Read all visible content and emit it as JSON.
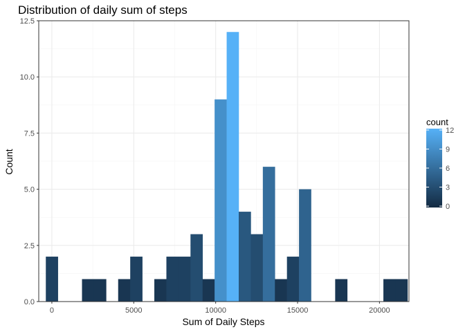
{
  "chart_data": {
    "type": "bar",
    "title": "Distribution of daily sum of steps",
    "xlabel": "Sum of Daily Steps",
    "ylabel": "Count",
    "xlim": [
      -800,
      21800
    ],
    "ylim": [
      0,
      12.5
    ],
    "x_ticks": [
      0,
      5000,
      10000,
      15000,
      20000
    ],
    "x_tick_labels": [
      "0",
      "5000",
      "10000",
      "15000",
      "20000"
    ],
    "y_ticks": [
      0,
      2.5,
      5,
      7.5,
      10,
      12.5
    ],
    "y_tick_labels": [
      "0.0",
      "2.5",
      "5.0",
      "7.5",
      "10.0",
      "12.5"
    ],
    "bin_width": 736,
    "bins": [
      {
        "x": 0,
        "count": 2
      },
      {
        "x": 2208,
        "count": 1
      },
      {
        "x": 2944,
        "count": 1
      },
      {
        "x": 4416,
        "count": 1
      },
      {
        "x": 5152,
        "count": 2
      },
      {
        "x": 6624,
        "count": 1
      },
      {
        "x": 7360,
        "count": 2
      },
      {
        "x": 8096,
        "count": 2
      },
      {
        "x": 8832,
        "count": 3
      },
      {
        "x": 9568,
        "count": 1
      },
      {
        "x": 10304,
        "count": 9
      },
      {
        "x": 11040,
        "count": 12
      },
      {
        "x": 11776,
        "count": 4
      },
      {
        "x": 12512,
        "count": 3
      },
      {
        "x": 13248,
        "count": 6
      },
      {
        "x": 13984,
        "count": 1
      },
      {
        "x": 14720,
        "count": 2
      },
      {
        "x": 15456,
        "count": 5
      },
      {
        "x": 17664,
        "count": 1
      },
      {
        "x": 20608,
        "count": 1
      },
      {
        "x": 21344,
        "count": 1
      }
    ],
    "grid": true,
    "legend": {
      "title": "count",
      "position": "right",
      "ticks": [
        0,
        3,
        6,
        9,
        12
      ],
      "tick_labels": [
        "0",
        "3",
        "6",
        "9",
        "12"
      ],
      "color_low": "#132B43",
      "color_high": "#56B1F7"
    },
    "colors": {
      "grid_major": "#ebebeb",
      "grid_minor": "#f5f5f5",
      "panel_border": "#333333",
      "tick_text": "#4d4d4d"
    }
  }
}
